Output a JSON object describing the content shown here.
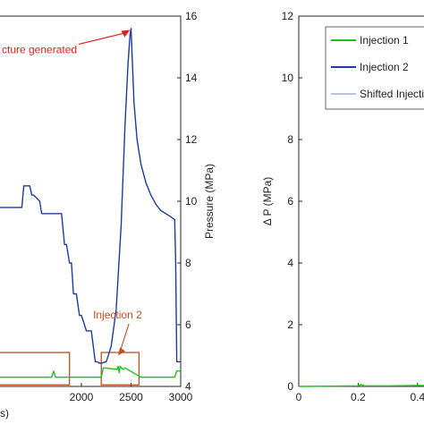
{
  "chart_data": [
    {
      "type": "line",
      "panel": "left",
      "xlabel": "",
      "ylabel": "Pressure (MPa)",
      "xlim": [
        1000,
        3000
      ],
      "ylim": [
        4,
        16
      ],
      "x_ticks": [
        2000,
        2500,
        3000
      ],
      "y_ticks": [
        4,
        6,
        8,
        10,
        12,
        14,
        16
      ],
      "grid": false,
      "series": [
        {
          "name": "",
          "color": "#1f3c9c",
          "x": [
            1000,
            1400,
            1420,
            1480,
            1500,
            1520,
            1580,
            1600,
            1800,
            1830,
            1850,
            1880,
            1900,
            1920,
            1950,
            1980,
            2000,
            2050,
            2100,
            2140,
            2160,
            2180,
            2200,
            2250,
            2300,
            2350,
            2400,
            2440,
            2470,
            2490,
            2500,
            2510,
            2530,
            2560,
            2600,
            2650,
            2700,
            2750,
            2800,
            2850,
            2900,
            2940,
            2950,
            2960,
            2980,
            3000
          ],
          "y": [
            9.8,
            9.8,
            10.5,
            10.5,
            10.2,
            10.2,
            10.0,
            9.6,
            9.6,
            8.6,
            8.6,
            8.0,
            8.0,
            7.0,
            7.0,
            6.3,
            6.3,
            5.8,
            5.8,
            4.8,
            4.8,
            4.75,
            4.75,
            4.8,
            5.3,
            6.5,
            9.2,
            12.5,
            14.5,
            15.4,
            15.6,
            14.8,
            13.2,
            12.0,
            11.2,
            10.6,
            10.2,
            9.9,
            9.7,
            9.6,
            9.5,
            9.4,
            8.0,
            4.8,
            4.8,
            4.8
          ]
        },
        {
          "name": "",
          "color": "#19c419",
          "x": [
            1000,
            1300,
            1400,
            1500,
            1700,
            1720,
            1740,
            1900,
            2100,
            2200,
            2220,
            2240,
            2360,
            2370,
            2380,
            2390,
            2420,
            2440,
            2600,
            2800,
            2940,
            2960,
            3000
          ],
          "y": [
            4.3,
            4.3,
            4.3,
            4.3,
            4.3,
            4.5,
            4.3,
            4.3,
            4.3,
            4.3,
            4.6,
            4.6,
            4.55,
            4.65,
            4.45,
            4.65,
            4.55,
            4.6,
            4.3,
            4.3,
            4.3,
            4.5,
            4.5
          ]
        }
      ],
      "annotations": [
        {
          "text": "Fracture generated",
          "visible_text": "cture generated",
          "x": 1150,
          "y": 14.8,
          "arrow_to": [
            2490,
            15.55
          ],
          "color": "#e0211b"
        },
        {
          "text": "Injection 2",
          "x": 2370,
          "y": 6.2,
          "arrow_to": [
            2370,
            5.0
          ],
          "color": "#c0501e"
        }
      ],
      "boxes": [
        {
          "x0": 1000,
          "x1": 1880,
          "y0": 4.05,
          "y1": 5.1,
          "color": "#c0501e"
        },
        {
          "x0": 2200,
          "x1": 2580,
          "y0": 4.05,
          "y1": 5.1,
          "color": "#c0501e"
        }
      ],
      "tick_labels": {
        "2000": "2000",
        "2500": "2500",
        "3000": "3000",
        "4": "4",
        "6": "6",
        "8": "8",
        "10": "10",
        "12": "12",
        "14": "14",
        "16": "16"
      },
      "corner_text": "s)"
    },
    {
      "type": "line",
      "panel": "right",
      "xlabel": "",
      "ylabel": "Δ P (MPa)",
      "xlim": [
        0,
        0.5
      ],
      "ylim": [
        0,
        12
      ],
      "x_ticks": [
        0,
        0.2,
        0.4
      ],
      "x_tick_labels": [
        "0",
        "0.2",
        "0.4"
      ],
      "y_ticks": [
        0,
        2,
        4,
        6,
        8,
        10,
        12
      ],
      "grid": false,
      "legend": {
        "placement": "top-left",
        "entries": [
          {
            "label": "Injection 1",
            "color": "#19c419"
          },
          {
            "label": "Injection 2",
            "color": "#1f3c9c"
          },
          {
            "label": "Shifted Injecti",
            "color": "#6f86e6"
          }
        ]
      },
      "series": [
        {
          "name": "Injection 1",
          "color": "#19c419",
          "x": [
            0,
            0.1,
            0.2,
            0.21,
            0.22,
            0.3,
            0.4,
            0.45,
            0.5
          ],
          "y": [
            0.0,
            0.01,
            0.02,
            0.06,
            0.02,
            0.02,
            0.03,
            0.03,
            0.03
          ]
        },
        {
          "name": "Injection 2",
          "color": "#1f3c9c",
          "x": [
            0.45,
            0.46,
            0.47,
            0.48,
            0.5
          ],
          "y": [
            0.0,
            0.05,
            0.15,
            0.3,
            0.55
          ]
        }
      ]
    }
  ]
}
